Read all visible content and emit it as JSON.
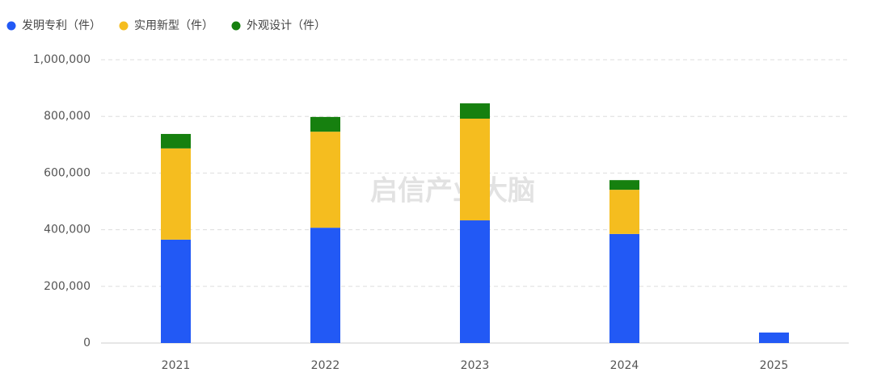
{
  "chart_data": {
    "type": "stacked-bar",
    "categories": [
      "2021",
      "2022",
      "2023",
      "2024",
      "2025"
    ],
    "series": [
      {
        "name": "发明专利（件）",
        "color": "#2259f5",
        "values": [
          365000,
          407000,
          433000,
          385000,
          37000
        ]
      },
      {
        "name": "实用新型（件）",
        "color": "#f5bd1f",
        "values": [
          322000,
          339000,
          359000,
          156000,
          0
        ]
      },
      {
        "name": "外观设计（件）",
        "color": "#16800f",
        "values": [
          51000,
          52000,
          54000,
          34000,
          0
        ]
      }
    ],
    "ylim": [
      0,
      1000000
    ],
    "yticks": [
      0,
      {
        "value": 200000,
        "label": "200,000"
      },
      {
        "value": 400000,
        "label": "400,000"
      },
      {
        "value": 600000,
        "label": "600,000"
      },
      {
        "value": 800000,
        "label": "800,000"
      },
      {
        "value": 1000000,
        "label": "1,000,000"
      }
    ],
    "grid": true,
    "legend": "top-left",
    "watermark": "启信产业大脑"
  }
}
